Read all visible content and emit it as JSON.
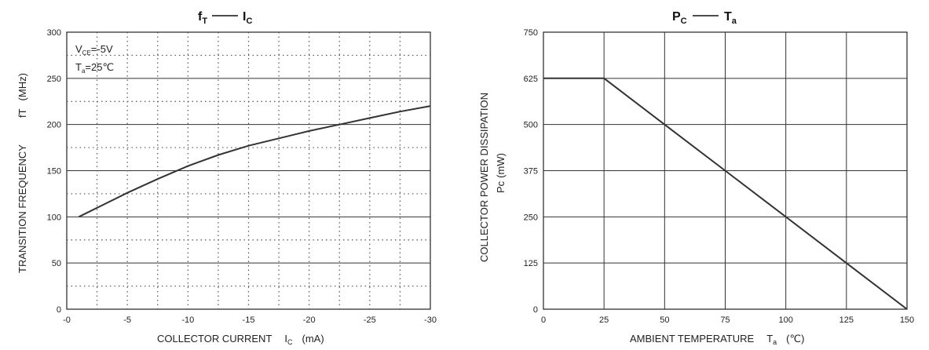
{
  "chart_data": [
    {
      "type": "line",
      "title_main": "f",
      "title_main_sub": "T",
      "title_vs": "I",
      "title_vs_sub": "C",
      "xlabel": "COLLECTOR CURRENT",
      "xlabel_symbol": "I",
      "xlabel_symbol_sub": "C",
      "xlabel_unit": "(mA)",
      "ylabel": "TRANSITION FREQUENCY",
      "ylabel_symbol": "fT",
      "ylabel_unit": "(MHz)",
      "xlim": [
        0,
        -30
      ],
      "ylim": [
        0,
        300
      ],
      "x_ticks": [
        "-0",
        "-5",
        "-10",
        "-15",
        "-20",
        "-25",
        "-30"
      ],
      "y_ticks": [
        "0",
        "50",
        "100",
        "150",
        "200",
        "250",
        "300"
      ],
      "grid": "solid major horizontal, dotted minor",
      "annotations": {
        "vce_label": "V",
        "vce_sub": "CE",
        "vce_value": "=-5V",
        "ta_label": "T",
        "ta_sub": "a",
        "ta_value": "=25℃"
      },
      "x": [
        -1,
        -3,
        -5,
        -7.5,
        -10,
        -12.5,
        -15,
        -17.5,
        -20,
        -22.5,
        -25,
        -27.5,
        -30
      ],
      "y": [
        100,
        113,
        126,
        141,
        155,
        167,
        177,
        185,
        193,
        200,
        207,
        214,
        220
      ],
      "color": "#333333"
    },
    {
      "type": "line",
      "title_main": "P",
      "title_main_sub": "C",
      "title_vs": "T",
      "title_vs_sub": "a",
      "xlabel": "AMBIENT TEMPERATURE",
      "xlabel_symbol": "T",
      "xlabel_symbol_sub": "a",
      "xlabel_unit": "(℃)",
      "ylabel": "COLLECTOR POWER DISSIPATION",
      "ylabel_symbol": "Pc",
      "ylabel_unit": "(mW)",
      "xlim": [
        0,
        150
      ],
      "ylim": [
        0,
        750
      ],
      "x_ticks": [
        "0",
        "25",
        "50",
        "75",
        "100",
        "125",
        "150"
      ],
      "y_ticks": [
        "0",
        "125",
        "250",
        "375",
        "500",
        "625",
        "750"
      ],
      "grid": "solid",
      "x": [
        0,
        25,
        50,
        75,
        100,
        125,
        150
      ],
      "y": [
        625,
        625,
        500,
        375,
        250,
        125,
        0
      ],
      "color": "#333333"
    }
  ]
}
